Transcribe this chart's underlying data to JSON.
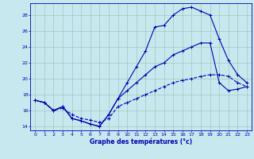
{
  "xlabel": "Graphe des températures (°c)",
  "xlim": [
    -0.5,
    23.5
  ],
  "ylim": [
    13.5,
    29.5
  ],
  "yticks": [
    14,
    16,
    18,
    20,
    22,
    24,
    26,
    28
  ],
  "xticks": [
    0,
    1,
    2,
    3,
    4,
    5,
    6,
    7,
    8,
    9,
    10,
    11,
    12,
    13,
    14,
    15,
    16,
    17,
    18,
    19,
    20,
    21,
    22,
    23
  ],
  "bg_color": "#c8e8f0",
  "grid_color": "#a0c8b8",
  "line_color": "#0000aa",
  "line1_x": [
    0,
    1,
    2,
    3,
    4,
    5,
    6,
    7,
    8,
    9,
    10,
    11,
    12,
    13,
    14,
    15,
    16,
    17,
    18,
    19,
    20,
    21,
    22,
    23
  ],
  "line1_y": [
    17.3,
    17.0,
    16.0,
    16.5,
    15.0,
    14.7,
    14.3,
    14.0,
    15.5,
    17.5,
    19.5,
    21.5,
    23.5,
    26.5,
    26.7,
    28.0,
    28.8,
    29.0,
    28.5,
    28.0,
    25.0,
    22.3,
    20.5,
    19.5
  ],
  "line2_x": [
    0,
    1,
    2,
    3,
    4,
    5,
    6,
    7,
    8,
    9,
    10,
    11,
    12,
    13,
    14,
    15,
    16,
    17,
    18,
    19,
    20,
    21,
    22,
    23
  ],
  "line2_y": [
    17.3,
    17.0,
    16.0,
    16.5,
    15.0,
    14.7,
    14.3,
    14.0,
    15.5,
    17.5,
    18.5,
    19.5,
    20.5,
    21.5,
    22.0,
    23.0,
    23.5,
    24.0,
    24.5,
    24.5,
    19.5,
    18.5,
    18.7,
    19.0
  ],
  "line3_x": [
    0,
    1,
    2,
    3,
    4,
    5,
    6,
    7,
    8,
    9,
    10,
    11,
    12,
    13,
    14,
    15,
    16,
    17,
    18,
    19,
    20,
    21,
    22,
    23
  ],
  "line3_y": [
    17.3,
    17.0,
    16.0,
    16.3,
    15.5,
    15.0,
    14.8,
    14.5,
    15.0,
    16.5,
    17.0,
    17.5,
    18.0,
    18.5,
    19.0,
    19.5,
    19.8,
    20.0,
    20.3,
    20.5,
    20.5,
    20.3,
    19.5,
    19.0
  ]
}
